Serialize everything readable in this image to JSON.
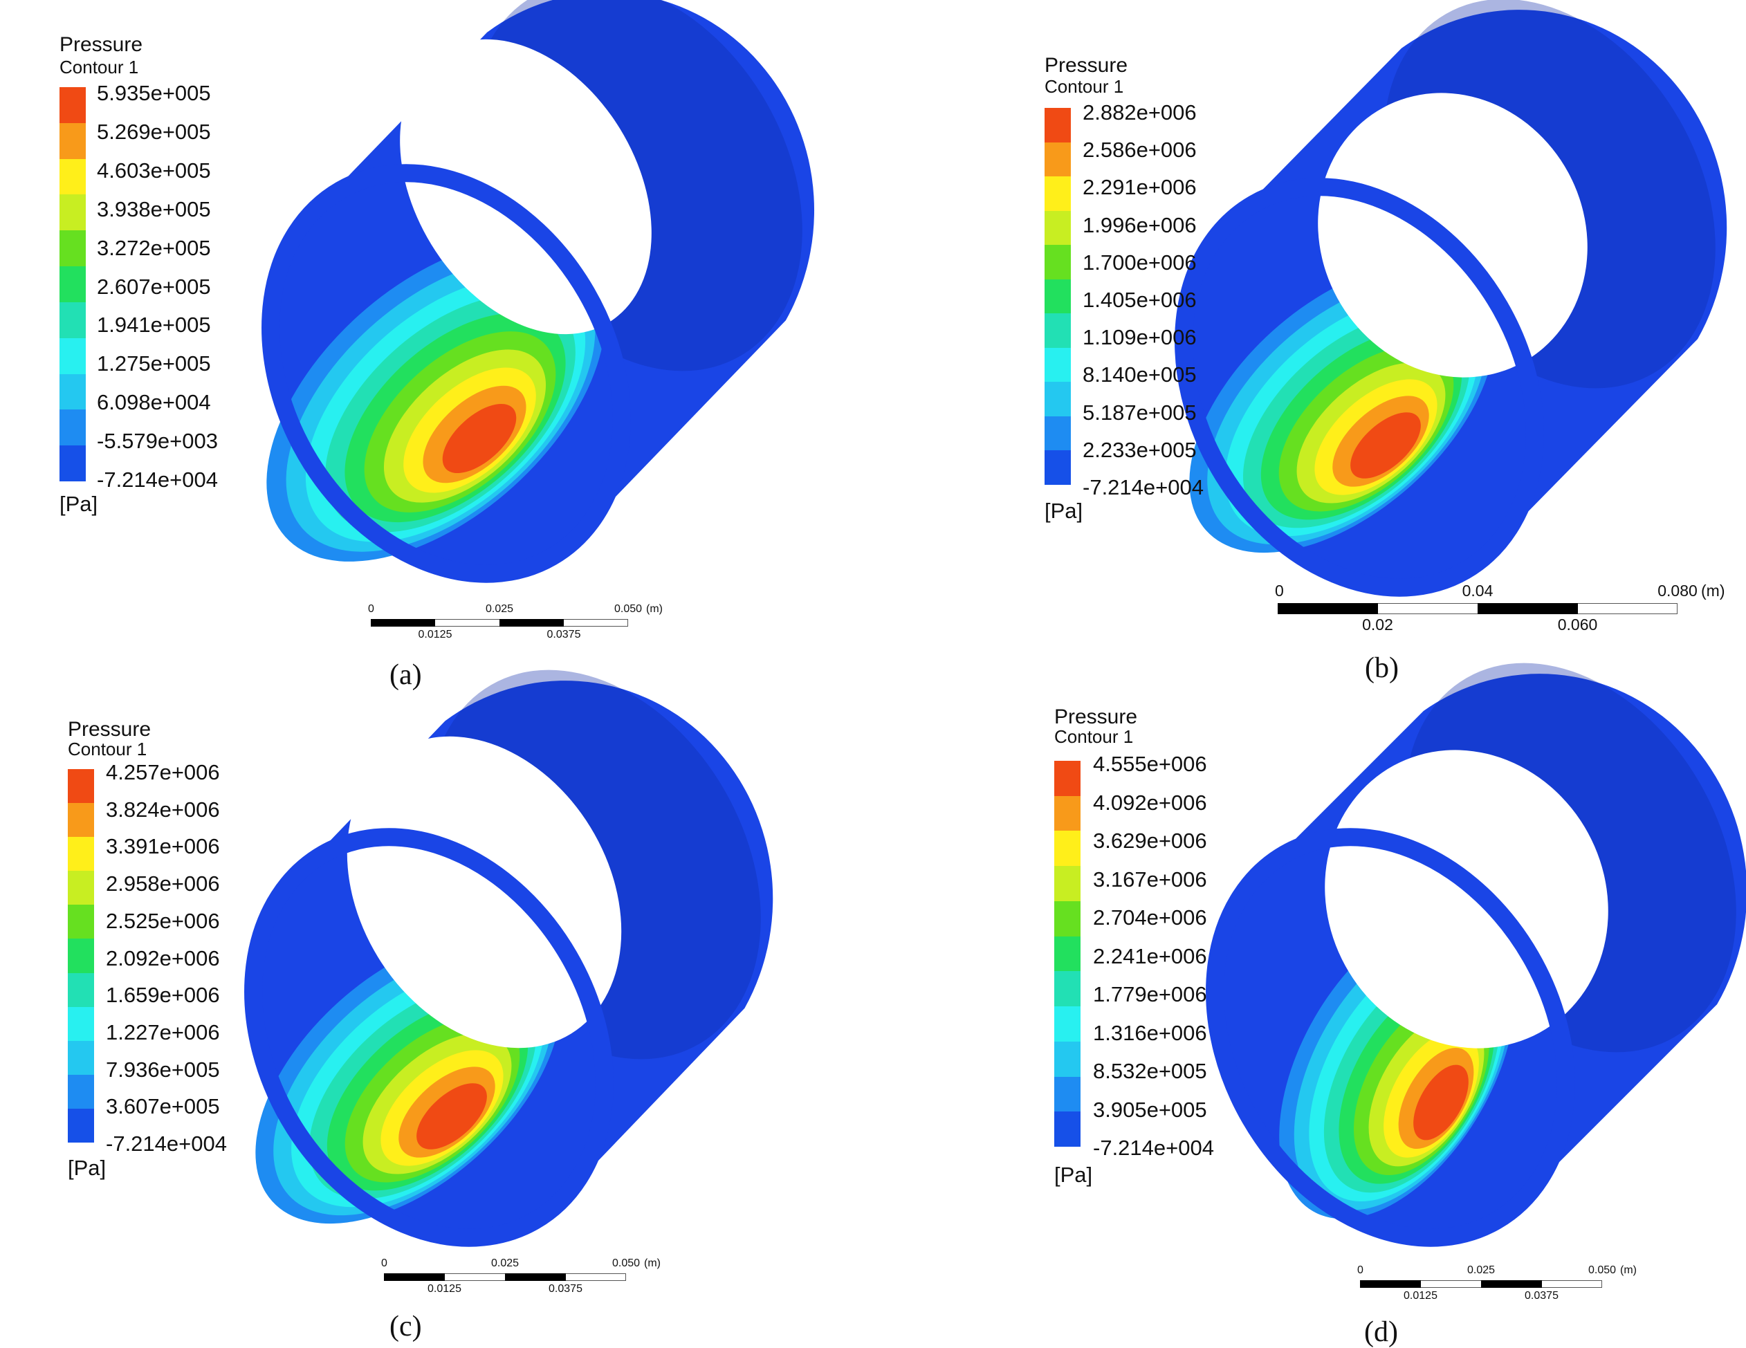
{
  "panels": [
    {
      "id": "a",
      "caption": "(a)",
      "legend_title": "Pressure",
      "legend_subtitle": "Contour 1",
      "unit": "[Pa]",
      "levels": [
        "5.935e+005",
        "5.269e+005",
        "4.603e+005",
        "3.938e+005",
        "3.272e+005",
        "2.607e+005",
        "1.941e+005",
        "1.275e+005",
        "6.098e+004",
        "-5.579e+003",
        "-7.214e+004"
      ],
      "scale_top": [
        "0",
        "0.025",
        "0.050",
        "(m)"
      ],
      "scale_bottom": [
        "0.0125",
        "0.0375"
      ]
    },
    {
      "id": "b",
      "caption": "(b)",
      "legend_title": "Pressure",
      "legend_subtitle": "Contour 1",
      "unit": "[Pa]",
      "levels": [
        "2.882e+006",
        "2.586e+006",
        "2.291e+006",
        "1.996e+006",
        "1.700e+006",
        "1.405e+006",
        "1.109e+006",
        "8.140e+005",
        "5.187e+005",
        "2.233e+005",
        "-7.214e+004"
      ],
      "scale_top": [
        "0",
        "0.04",
        "0.080",
        "(m)"
      ],
      "scale_bottom": [
        "0.02",
        "0.060"
      ]
    },
    {
      "id": "c",
      "caption": "(c)",
      "legend_title": "Pressure",
      "legend_subtitle": "Contour 1",
      "unit": "[Pa]",
      "levels": [
        "4.257e+006",
        "3.824e+006",
        "3.391e+006",
        "2.958e+006",
        "2.525e+006",
        "2.092e+006",
        "1.659e+006",
        "1.227e+006",
        "7.936e+005",
        "3.607e+005",
        "-7.214e+004"
      ],
      "scale_top": [
        "0",
        "0.025",
        "0.050",
        "(m)"
      ],
      "scale_bottom": [
        "0.0125",
        "0.0375"
      ]
    },
    {
      "id": "d",
      "caption": "(d)",
      "legend_title": "Pressure",
      "legend_subtitle": "Contour 1",
      "unit": "[Pa]",
      "levels": [
        "4.555e+006",
        "4.092e+006",
        "3.629e+006",
        "3.167e+006",
        "2.704e+006",
        "2.241e+006",
        "1.779e+006",
        "1.316e+006",
        "8.532e+005",
        "3.905e+005",
        "-7.214e+004"
      ],
      "scale_top": [
        "0",
        "0.025",
        "0.050",
        "(m)"
      ],
      "scale_bottom": [
        "0.0125",
        "0.0375"
      ]
    }
  ],
  "colormap": [
    "#f04a14",
    "#f89a1a",
    "#ffef1a",
    "#c8ee22",
    "#66e020",
    "#22e05e",
    "#22e0b4",
    "#28f0f0",
    "#24c8f0",
    "#1e8cf2",
    "#1650e8"
  ],
  "cylinder_color": "#1a45e6",
  "cylinder_dark": "#0e2aa8"
}
